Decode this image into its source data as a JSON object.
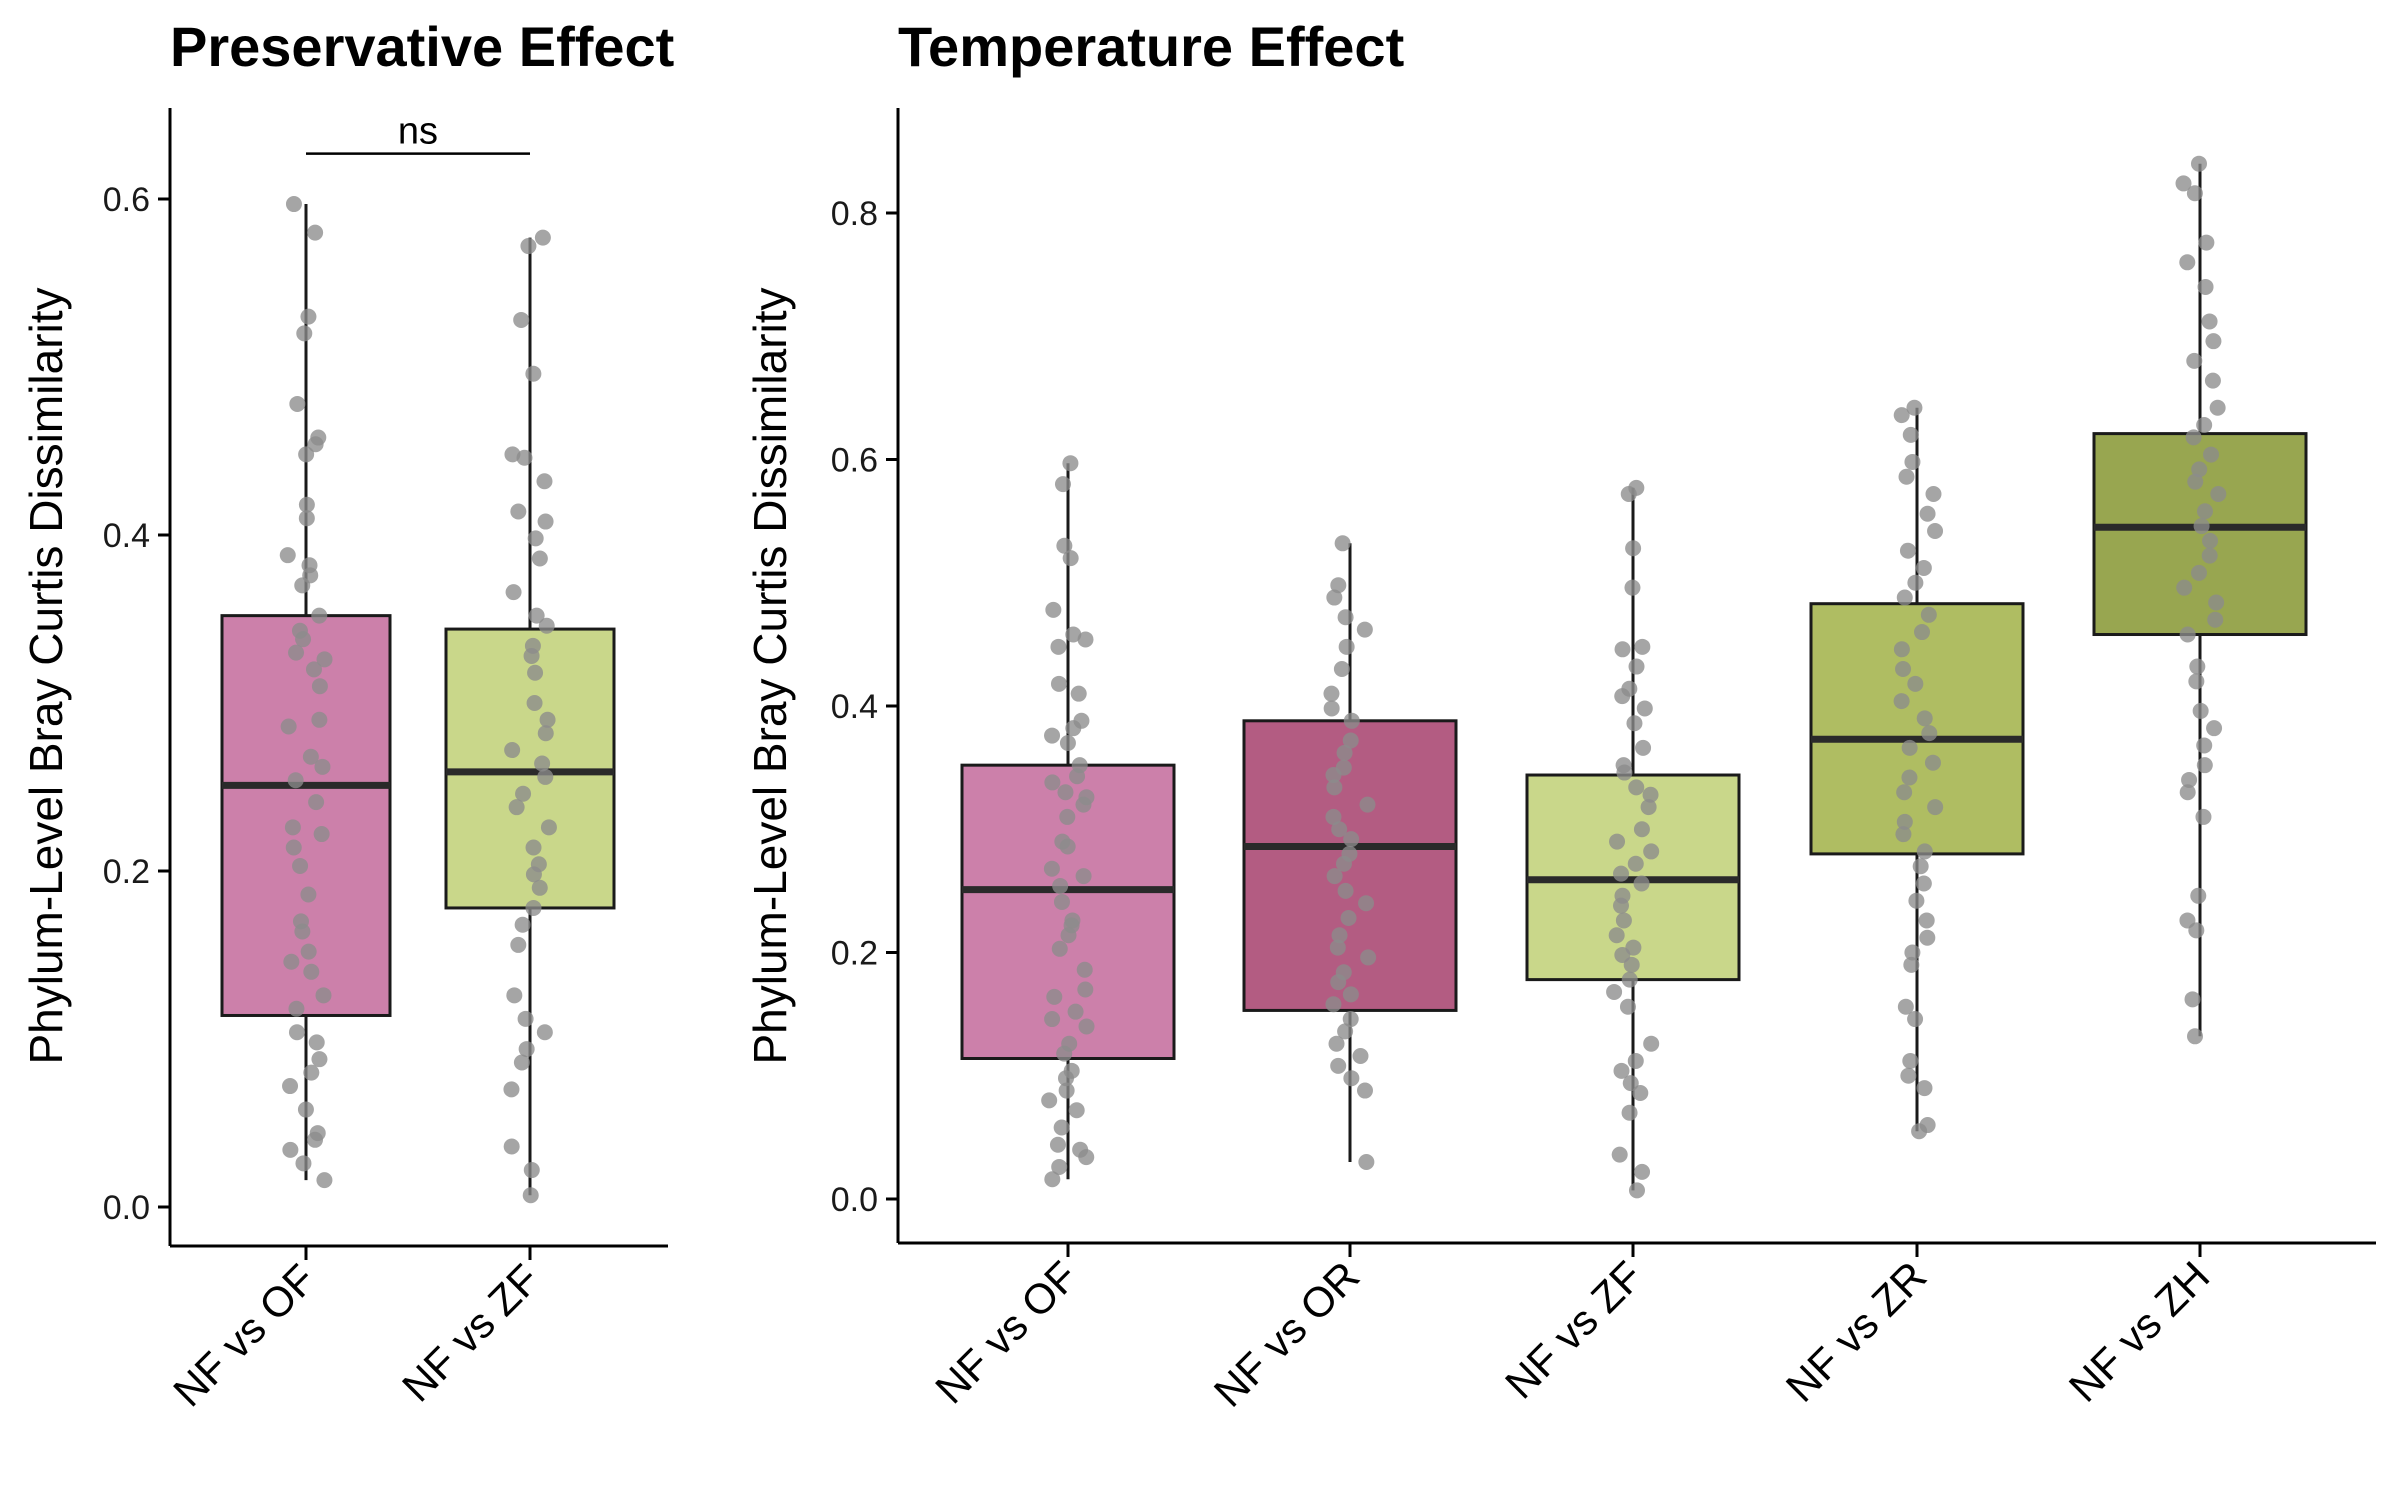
{
  "chart_data": [
    {
      "type": "box",
      "title": "Preservative Effect",
      "ylabel": "Phylum-Level Bray Curtis Dissimilarity",
      "xlabel": "",
      "ylim": [
        -0.03,
        0.66
      ],
      "yticks": [
        0.0,
        0.2,
        0.4,
        0.6
      ],
      "ytick_labels": [
        "0.0",
        "0.2",
        "0.4",
        "0.6"
      ],
      "categories": [
        "NF vs OF",
        "NF vs ZF"
      ],
      "boxes": [
        {
          "category": "NF vs OF",
          "min": 0.016,
          "q1": 0.114,
          "median": 0.251,
          "q3": 0.352,
          "max": 0.597,
          "color": "#CC80AA",
          "points": [
            0.597,
            0.58,
            0.53,
            0.52,
            0.478,
            0.458,
            0.454,
            0.448,
            0.418,
            0.41,
            0.388,
            0.382,
            0.376,
            0.37,
            0.352,
            0.343,
            0.338,
            0.33,
            0.326,
            0.32,
            0.31,
            0.29,
            0.286,
            0.268,
            0.262,
            0.254,
            0.241,
            0.226,
            0.222,
            0.214,
            0.203,
            0.186,
            0.17,
            0.164,
            0.152,
            0.146,
            0.14,
            0.126,
            0.118,
            0.104,
            0.098,
            0.088,
            0.08,
            0.072,
            0.058,
            0.044,
            0.04,
            0.034,
            0.026,
            0.016
          ]
        },
        {
          "category": "NF vs ZF",
          "min": 0.007,
          "q1": 0.178,
          "median": 0.259,
          "q3": 0.344,
          "max": 0.577,
          "color": "#C9D78A",
          "points": [
            0.577,
            0.572,
            0.528,
            0.496,
            0.448,
            0.446,
            0.432,
            0.414,
            0.408,
            0.398,
            0.386,
            0.366,
            0.352,
            0.346,
            0.334,
            0.328,
            0.318,
            0.3,
            0.29,
            0.282,
            0.272,
            0.264,
            0.256,
            0.246,
            0.238,
            0.226,
            0.214,
            0.204,
            0.198,
            0.19,
            0.178,
            0.168,
            0.156,
            0.126,
            0.112,
            0.104,
            0.094,
            0.086,
            0.07,
            0.036,
            0.022,
            0.007
          ]
        }
      ],
      "significance": {
        "from": "NF vs OF",
        "to": "NF vs ZF",
        "y": 0.627,
        "label": "ns"
      },
      "point_color": "#8C8C8C"
    },
    {
      "type": "box",
      "title": "Temperature Effect",
      "ylabel": "Phylum-Level Bray Curtis Dissimilarity",
      "xlabel": "",
      "ylim": [
        -0.035,
        0.89
      ],
      "yticks": [
        0.0,
        0.2,
        0.4,
        0.6,
        0.8
      ],
      "ytick_labels": [
        "0.0",
        "0.2",
        "0.4",
        "0.6",
        "0.8"
      ],
      "categories": [
        "NF vs OF",
        "NF vs OR",
        "NF vs ZF",
        "NF vs ZR",
        "NF vs ZH"
      ],
      "boxes": [
        {
          "category": "NF vs OF",
          "min": 0.016,
          "q1": 0.114,
          "median": 0.251,
          "q3": 0.352,
          "max": 0.597,
          "color": "#CC80AA",
          "points": [
            0.597,
            0.58,
            0.53,
            0.52,
            0.478,
            0.458,
            0.454,
            0.448,
            0.418,
            0.41,
            0.388,
            0.382,
            0.376,
            0.37,
            0.352,
            0.343,
            0.338,
            0.33,
            0.326,
            0.32,
            0.31,
            0.29,
            0.286,
            0.268,
            0.262,
            0.254,
            0.241,
            0.226,
            0.222,
            0.214,
            0.203,
            0.186,
            0.17,
            0.164,
            0.152,
            0.146,
            0.14,
            0.126,
            0.118,
            0.104,
            0.098,
            0.088,
            0.08,
            0.072,
            0.058,
            0.044,
            0.04,
            0.034,
            0.026,
            0.016
          ]
        },
        {
          "category": "NF vs OR",
          "min": 0.03,
          "q1": 0.153,
          "median": 0.286,
          "q3": 0.388,
          "max": 0.532,
          "color": "#B35C82",
          "points": [
            0.532,
            0.498,
            0.488,
            0.472,
            0.462,
            0.448,
            0.43,
            0.41,
            0.398,
            0.388,
            0.372,
            0.362,
            0.35,
            0.344,
            0.334,
            0.32,
            0.31,
            0.3,
            0.292,
            0.28,
            0.272,
            0.262,
            0.25,
            0.24,
            0.228,
            0.214,
            0.204,
            0.196,
            0.184,
            0.176,
            0.166,
            0.158,
            0.146,
            0.136,
            0.126,
            0.116,
            0.108,
            0.098,
            0.088,
            0.03
          ]
        },
        {
          "category": "NF vs ZF",
          "min": 0.007,
          "q1": 0.178,
          "median": 0.259,
          "q3": 0.344,
          "max": 0.577,
          "color": "#C9D78A",
          "points": [
            0.577,
            0.572,
            0.528,
            0.496,
            0.448,
            0.446,
            0.432,
            0.414,
            0.408,
            0.398,
            0.386,
            0.366,
            0.352,
            0.346,
            0.334,
            0.328,
            0.318,
            0.3,
            0.29,
            0.282,
            0.272,
            0.264,
            0.256,
            0.246,
            0.238,
            0.226,
            0.214,
            0.204,
            0.198,
            0.19,
            0.178,
            0.168,
            0.156,
            0.126,
            0.112,
            0.104,
            0.094,
            0.086,
            0.07,
            0.036,
            0.022,
            0.007
          ]
        },
        {
          "category": "NF vs ZR",
          "min": 0.055,
          "q1": 0.28,
          "median": 0.373,
          "q3": 0.483,
          "max": 0.642,
          "color": "#AFBD62",
          "points": [
            0.642,
            0.636,
            0.62,
            0.598,
            0.586,
            0.572,
            0.556,
            0.542,
            0.526,
            0.512,
            0.5,
            0.488,
            0.474,
            0.46,
            0.446,
            0.43,
            0.418,
            0.404,
            0.39,
            0.378,
            0.366,
            0.354,
            0.342,
            0.33,
            0.318,
            0.306,
            0.296,
            0.282,
            0.27,
            0.256,
            0.242,
            0.226,
            0.212,
            0.2,
            0.19,
            0.156,
            0.146,
            0.112,
            0.1,
            0.09,
            0.06,
            0.055
          ]
        },
        {
          "category": "NF vs ZH",
          "min": 0.132,
          "q1": 0.458,
          "median": 0.545,
          "q3": 0.621,
          "max": 0.84,
          "color": "#98A650",
          "points": [
            0.84,
            0.824,
            0.816,
            0.776,
            0.76,
            0.74,
            0.712,
            0.696,
            0.68,
            0.664,
            0.642,
            0.628,
            0.618,
            0.604,
            0.592,
            0.582,
            0.572,
            0.558,
            0.546,
            0.534,
            0.522,
            0.508,
            0.496,
            0.484,
            0.47,
            0.458,
            0.432,
            0.42,
            0.396,
            0.382,
            0.368,
            0.352,
            0.34,
            0.33,
            0.31,
            0.246,
            0.226,
            0.218,
            0.162,
            0.132
          ]
        }
      ],
      "point_color": "#8C8C8C"
    }
  ]
}
